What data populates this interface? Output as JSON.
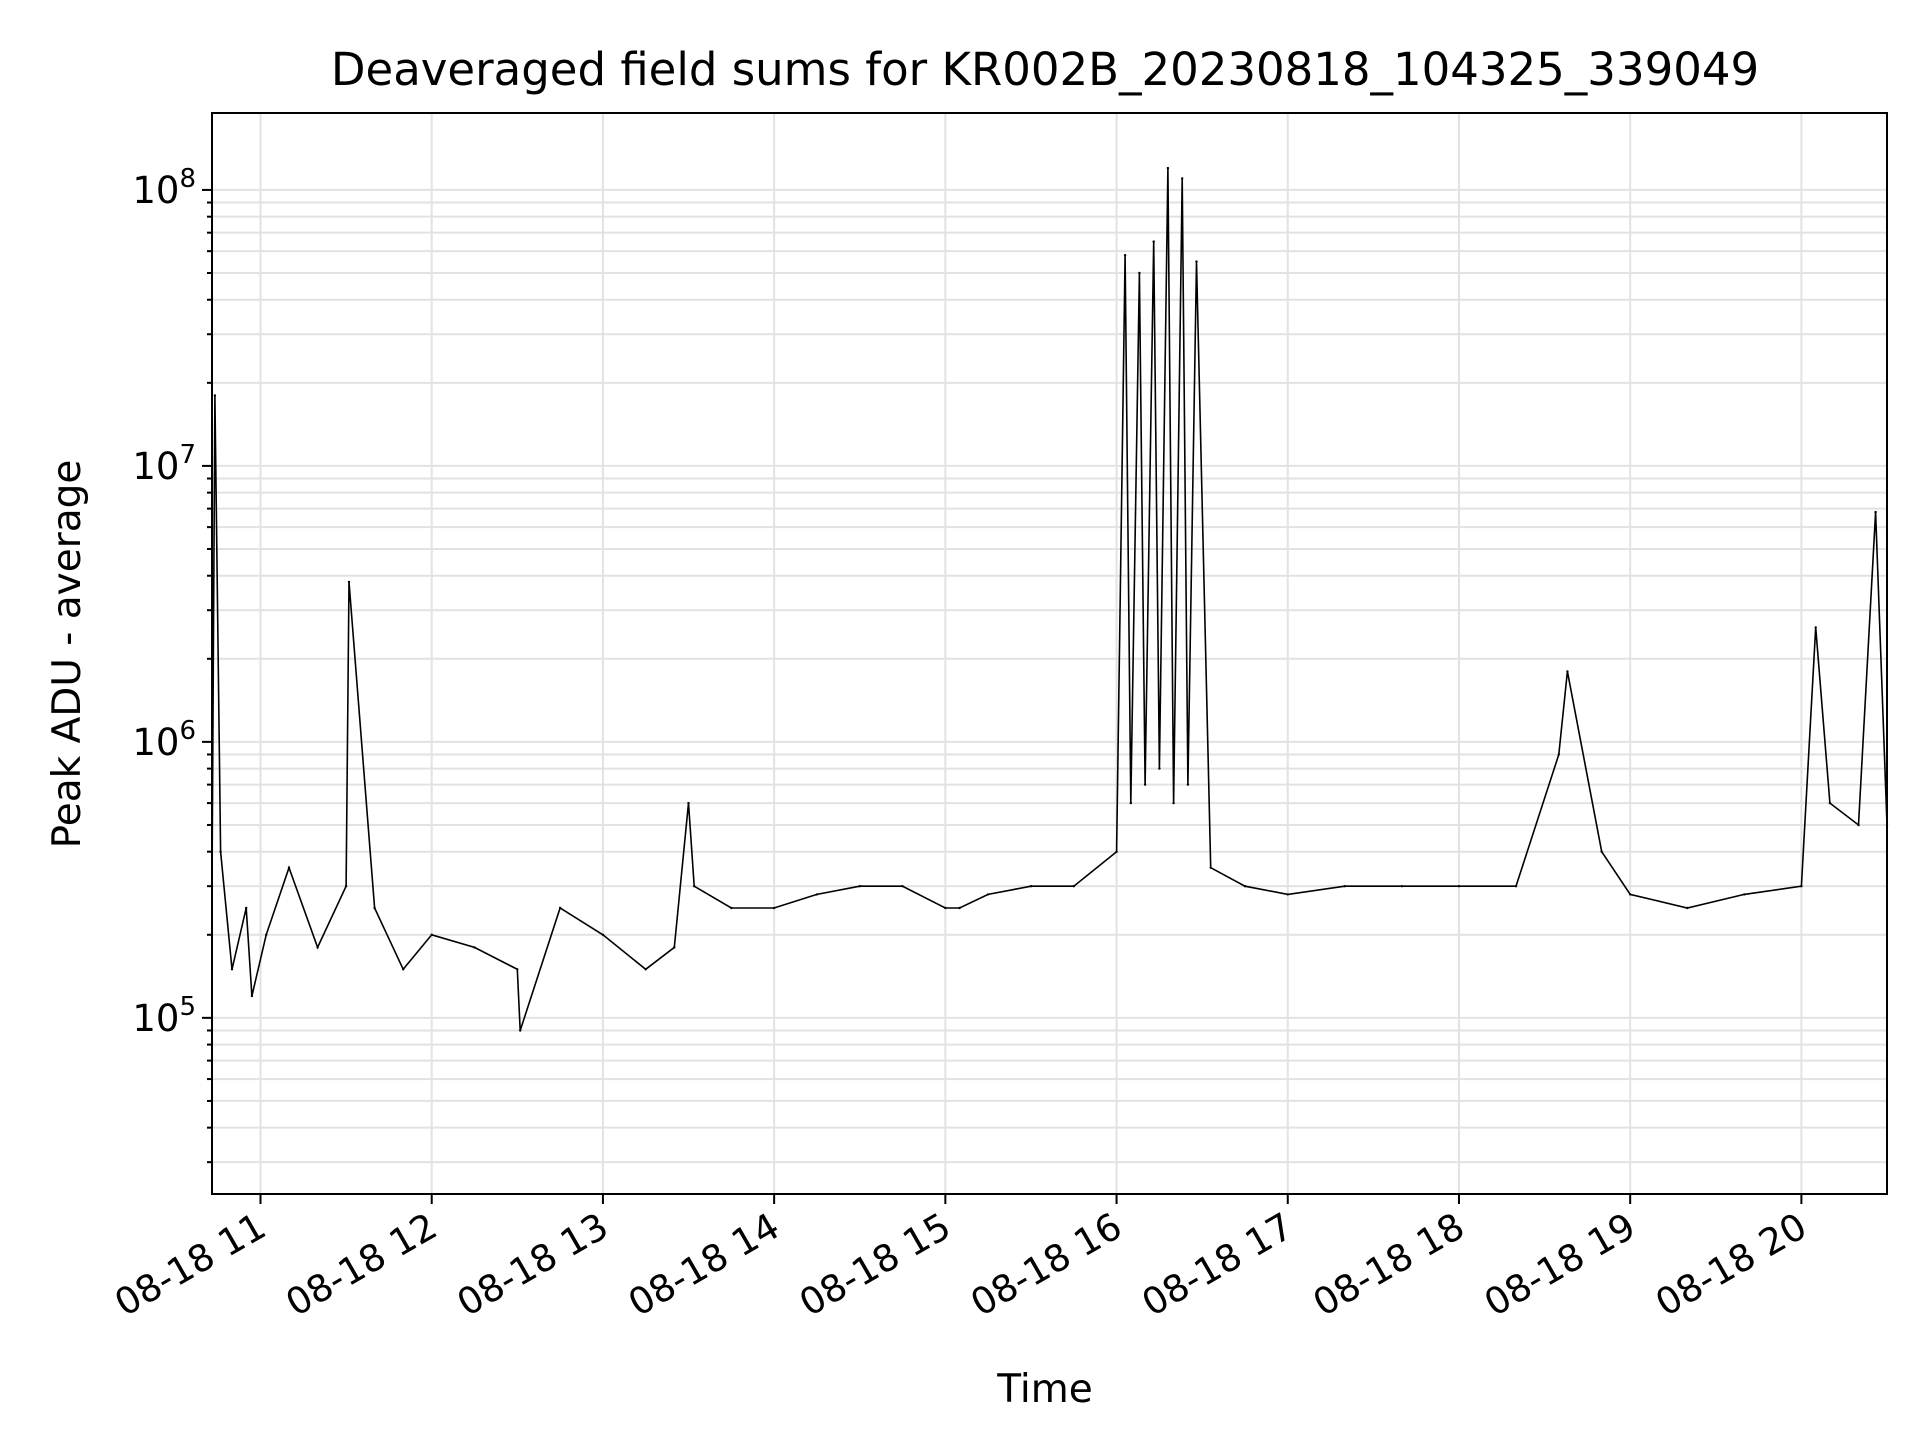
{
  "chart_data": {
    "type": "line",
    "title": "Deaveraged field sums for KR002B_20230818_104325_339049",
    "xlabel": "Time",
    "ylabel": "Peak ADU - average",
    "xscale": "time",
    "yscale": "log",
    "xlim": [
      "2023-08-18 10:43",
      "2023-08-18 20:30"
    ],
    "ylim": [
      23000,
      190000000
    ],
    "grid": true,
    "legend": "none",
    "line_color": "#000000",
    "x_ticks": [
      {
        "value": "2023-08-18 11:00",
        "label": "08-18 11"
      },
      {
        "value": "2023-08-18 12:00",
        "label": "08-18 12"
      },
      {
        "value": "2023-08-18 13:00",
        "label": "08-18 13"
      },
      {
        "value": "2023-08-18 14:00",
        "label": "08-18 14"
      },
      {
        "value": "2023-08-18 15:00",
        "label": "08-18 15"
      },
      {
        "value": "2023-08-18 16:00",
        "label": "08-18 16"
      },
      {
        "value": "2023-08-18 17:00",
        "label": "08-18 17"
      },
      {
        "value": "2023-08-18 18:00",
        "label": "08-18 18"
      },
      {
        "value": "2023-08-18 19:00",
        "label": "08-18 19"
      },
      {
        "value": "2023-08-18 20:00",
        "label": "08-18 20"
      }
    ],
    "y_ticks": [
      {
        "value": 100000,
        "base": "10",
        "exp": "5"
      },
      {
        "value": 1000000,
        "base": "10",
        "exp": "6"
      },
      {
        "value": 10000000,
        "base": "10",
        "exp": "7"
      },
      {
        "value": 100000000,
        "base": "10",
        "exp": "8"
      }
    ],
    "series": [
      {
        "x": [
          "2023-08-18 10:43",
          "2023-08-18 10:44",
          "2023-08-18 10:46",
          "2023-08-18 10:50",
          "2023-08-18 10:55",
          "2023-08-18 10:57",
          "2023-08-18 11:02",
          "2023-08-18 11:10",
          "2023-08-18 11:20",
          "2023-08-18 11:30",
          "2023-08-18 11:31",
          "2023-08-18 11:40",
          "2023-08-18 11:50",
          "2023-08-18 12:00",
          "2023-08-18 12:15",
          "2023-08-18 12:30",
          "2023-08-18 12:31",
          "2023-08-18 12:45",
          "2023-08-18 13:00",
          "2023-08-18 13:15",
          "2023-08-18 13:25",
          "2023-08-18 13:30",
          "2023-08-18 13:32",
          "2023-08-18 13:45",
          "2023-08-18 14:00",
          "2023-08-18 14:15",
          "2023-08-18 14:30",
          "2023-08-18 14:45",
          "2023-08-18 15:00",
          "2023-08-18 15:05",
          "2023-08-18 15:15",
          "2023-08-18 15:30",
          "2023-08-18 15:45",
          "2023-08-18 16:00",
          "2023-08-18 16:03",
          "2023-08-18 16:05",
          "2023-08-18 16:08",
          "2023-08-18 16:10",
          "2023-08-18 16:13",
          "2023-08-18 16:15",
          "2023-08-18 16:18",
          "2023-08-18 16:20",
          "2023-08-18 16:23",
          "2023-08-18 16:25",
          "2023-08-18 16:28",
          "2023-08-18 16:33",
          "2023-08-18 16:45",
          "2023-08-18 17:00",
          "2023-08-18 17:20",
          "2023-08-18 17:40",
          "2023-08-18 18:00",
          "2023-08-18 18:20",
          "2023-08-18 18:35",
          "2023-08-18 18:38",
          "2023-08-18 18:50",
          "2023-08-18 19:00",
          "2023-08-18 19:20",
          "2023-08-18 19:40",
          "2023-08-18 20:00",
          "2023-08-18 20:05",
          "2023-08-18 20:10",
          "2023-08-18 20:20",
          "2023-08-18 20:26",
          "2023-08-18 20:30"
        ],
        "y": [
          300000,
          18000000,
          400000,
          150000,
          250000,
          120000,
          200000,
          350000,
          180000,
          300000,
          3800000,
          250000,
          150000,
          200000,
          180000,
          150000,
          90000,
          250000,
          200000,
          150000,
          180000,
          600000,
          300000,
          250000,
          250000,
          280000,
          300000,
          300000,
          250000,
          250000,
          280000,
          300000,
          300000,
          400000,
          58000000,
          600000,
          50000000,
          700000,
          65000000,
          800000,
          120000000,
          600000,
          110000000,
          700000,
          55000000,
          350000,
          300000,
          280000,
          300000,
          300000,
          300000,
          300000,
          900000,
          1800000,
          400000,
          280000,
          250000,
          280000,
          300000,
          2600000,
          600000,
          500000,
          6800000,
          500000
        ]
      }
    ]
  }
}
